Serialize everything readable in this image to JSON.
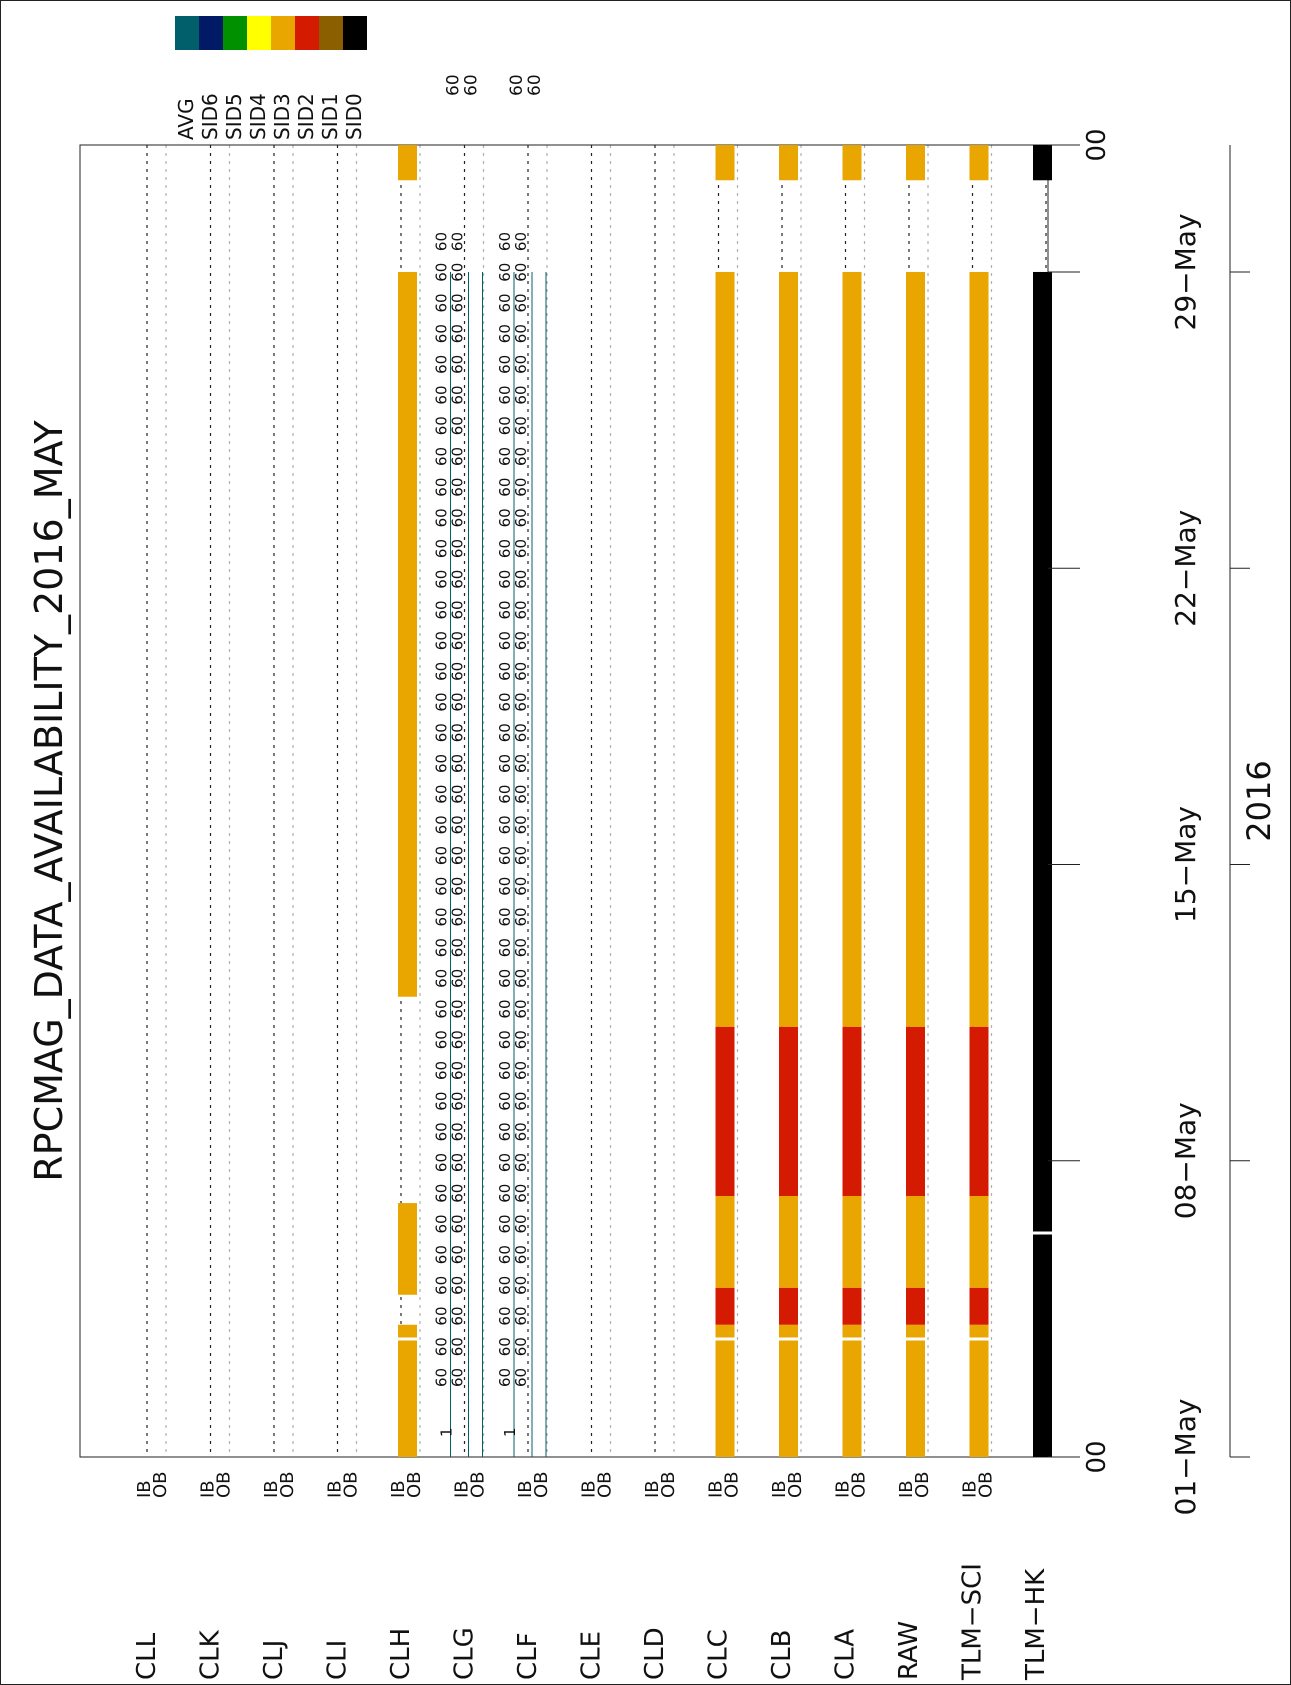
{
  "chart_data": {
    "type": "timeline",
    "title": "RPCMAG_DATA_AVAILABILITY_2016_MAY",
    "year_label": "2016",
    "time_range": [
      "2016-05-01T00:00",
      "2016-06-01T00:00"
    ],
    "time_ticks": [
      {
        "label": "01−May",
        "date": "2016-05-01"
      },
      {
        "label": "08−May",
        "date": "2016-05-08"
      },
      {
        "label": "15−May",
        "date": "2016-05-15"
      },
      {
        "label": "22−May",
        "date": "2016-05-22"
      },
      {
        "label": "29−May",
        "date": "2016-05-29"
      }
    ],
    "hour_labels": [
      {
        "label": "00",
        "date": "2016-05-01"
      },
      {
        "label": "00",
        "date": "2016-06-01"
      }
    ],
    "legend": [
      {
        "label": "AVG",
        "color": "#005f6b"
      },
      {
        "label": "SID6",
        "color": "#001a66"
      },
      {
        "label": "SID5",
        "color": "#009000"
      },
      {
        "label": "SID4",
        "color": "#ffff00"
      },
      {
        "label": "SID3",
        "color": "#eaa600"
      },
      {
        "label": "SID2",
        "color": "#d41a00"
      },
      {
        "label": "SID1",
        "color": "#8b5e00"
      },
      {
        "label": "SID0",
        "color": "#000000"
      }
    ],
    "sensor_labels": [
      "IB",
      "OB"
    ],
    "avg_value_label": "60",
    "avg_tick_label": "1",
    "avg_top_labels": [
      "60",
      "60"
    ],
    "rows": [
      {
        "name": "CLL",
        "sensors": true
      },
      {
        "name": "CLK",
        "sensors": true
      },
      {
        "name": "CLJ",
        "sensors": true
      },
      {
        "name": "CLI",
        "sensors": true
      },
      {
        "name": "CLH",
        "sensors": true,
        "bars": [
          {
            "from": "2016-05-01T00:00",
            "to": "2016-05-04T03:00",
            "color": "#eaa600"
          },
          {
            "from": "2016-05-04T20:00",
            "to": "2016-05-07T00:00",
            "color": "#eaa600"
          },
          {
            "from": "2016-05-11T21:00",
            "to": "2016-05-29T00:00",
            "color": "#eaa600"
          },
          {
            "from": "2016-05-31T04:00",
            "to": "2016-05-31T23:59",
            "color": "#eaa600"
          }
        ]
      },
      {
        "name": "CLG",
        "sensors": true,
        "avg": true
      },
      {
        "name": "CLF",
        "sensors": true,
        "avg": true
      },
      {
        "name": "CLE",
        "sensors": true
      },
      {
        "name": "CLD",
        "sensors": true
      },
      {
        "name": "CLC",
        "sensors": true,
        "bars": [
          {
            "from": "2016-05-01T00:00",
            "to": "2016-05-04T03:00",
            "color": "#eaa600"
          },
          {
            "from": "2016-05-04T03:00",
            "to": "2016-05-05T00:00",
            "color": "#d41a00"
          },
          {
            "from": "2016-05-05T00:00",
            "to": "2016-05-07T04:00",
            "color": "#eaa600"
          },
          {
            "from": "2016-05-07T04:00",
            "to": "2016-05-11T04:00",
            "color": "#d41a00"
          },
          {
            "from": "2016-05-11T04:00",
            "to": "2016-05-29T00:00",
            "color": "#eaa600"
          },
          {
            "from": "2016-05-31T04:00",
            "to": "2016-05-31T23:59",
            "color": "#eaa600"
          }
        ]
      },
      {
        "name": "CLB",
        "sensors": true,
        "bars": [
          {
            "from": "2016-05-01T00:00",
            "to": "2016-05-04T03:00",
            "color": "#eaa600"
          },
          {
            "from": "2016-05-04T03:00",
            "to": "2016-05-05T00:00",
            "color": "#d41a00"
          },
          {
            "from": "2016-05-05T00:00",
            "to": "2016-05-07T04:00",
            "color": "#eaa600"
          },
          {
            "from": "2016-05-07T04:00",
            "to": "2016-05-11T04:00",
            "color": "#d41a00"
          },
          {
            "from": "2016-05-11T04:00",
            "to": "2016-05-29T00:00",
            "color": "#eaa600"
          },
          {
            "from": "2016-05-31T04:00",
            "to": "2016-05-31T23:59",
            "color": "#eaa600"
          }
        ]
      },
      {
        "name": "CLA",
        "sensors": true,
        "bars": [
          {
            "from": "2016-05-01T00:00",
            "to": "2016-05-04T03:00",
            "color": "#eaa600"
          },
          {
            "from": "2016-05-04T03:00",
            "to": "2016-05-05T00:00",
            "color": "#d41a00"
          },
          {
            "from": "2016-05-05T00:00",
            "to": "2016-05-07T04:00",
            "color": "#eaa600"
          },
          {
            "from": "2016-05-07T04:00",
            "to": "2016-05-11T04:00",
            "color": "#d41a00"
          },
          {
            "from": "2016-05-11T04:00",
            "to": "2016-05-29T00:00",
            "color": "#eaa600"
          },
          {
            "from": "2016-05-31T04:00",
            "to": "2016-05-31T23:59",
            "color": "#eaa600"
          }
        ]
      },
      {
        "name": "RAW",
        "sensors": true,
        "bars": [
          {
            "from": "2016-05-01T00:00",
            "to": "2016-05-04T03:00",
            "color": "#eaa600"
          },
          {
            "from": "2016-05-04T03:00",
            "to": "2016-05-05T00:00",
            "color": "#d41a00"
          },
          {
            "from": "2016-05-05T00:00",
            "to": "2016-05-07T04:00",
            "color": "#eaa600"
          },
          {
            "from": "2016-05-07T04:00",
            "to": "2016-05-11T04:00",
            "color": "#d41a00"
          },
          {
            "from": "2016-05-11T04:00",
            "to": "2016-05-29T00:00",
            "color": "#eaa600"
          },
          {
            "from": "2016-05-31T04:00",
            "to": "2016-05-31T23:59",
            "color": "#eaa600"
          }
        ]
      },
      {
        "name": "TLM−SCI",
        "sensors": true,
        "bars": [
          {
            "from": "2016-05-01T00:00",
            "to": "2016-05-04T03:00",
            "color": "#eaa600"
          },
          {
            "from": "2016-05-04T03:00",
            "to": "2016-05-05T00:00",
            "color": "#d41a00"
          },
          {
            "from": "2016-05-05T00:00",
            "to": "2016-05-07T04:00",
            "color": "#eaa600"
          },
          {
            "from": "2016-05-07T04:00",
            "to": "2016-05-11T04:00",
            "color": "#d41a00"
          },
          {
            "from": "2016-05-11T04:00",
            "to": "2016-05-29T00:00",
            "color": "#eaa600"
          },
          {
            "from": "2016-05-31T04:00",
            "to": "2016-05-31T23:59",
            "color": "#eaa600"
          }
        ]
      },
      {
        "name": "TLM−HK",
        "sensors": false,
        "bars": [
          {
            "from": "2016-05-01T00:00",
            "to": "2016-05-29T00:00",
            "color": "#000000"
          },
          {
            "from": "2016-05-31T04:00",
            "to": "2016-05-31T23:59",
            "color": "#000000"
          }
        ]
      }
    ]
  }
}
